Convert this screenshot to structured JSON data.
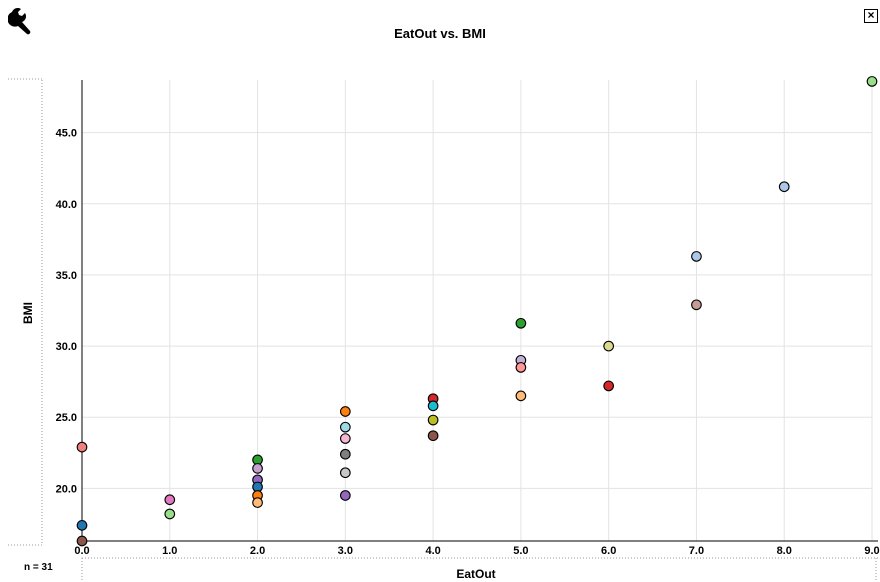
{
  "header": {
    "title": "EatOut vs. BMI",
    "close_label": "×",
    "count_label": "n = 31"
  },
  "icons": {
    "tools": "wrench-icon",
    "close": "close-icon"
  },
  "chart_data": {
    "type": "scatter",
    "title": "EatOut vs. BMI",
    "xlabel": "EatOut",
    "ylabel": "BMI",
    "xlim": [
      0,
      9
    ],
    "ylim": [
      16.3,
      48.7
    ],
    "xticks": [
      0,
      1,
      2,
      3,
      4,
      5,
      6,
      7,
      8,
      9
    ],
    "xtick_labels": [
      "0.0",
      "1.0",
      "2.0",
      "3.0",
      "4.0",
      "5.0",
      "6.0",
      "7.0",
      "8.0",
      "9.0"
    ],
    "yticks": [
      20,
      25,
      30,
      35,
      40,
      45
    ],
    "ytick_labels": [
      "20.0",
      "25.0",
      "30.0",
      "35.0",
      "40.0",
      "45.0"
    ],
    "grid": true,
    "legend": "none",
    "points": [
      {
        "x": 0,
        "y": 22.9,
        "color": "#f08080"
      },
      {
        "x": 0,
        "y": 17.4,
        "color": "#1f77b4"
      },
      {
        "x": 0,
        "y": 16.3,
        "color": "#8c564b"
      },
      {
        "x": 1,
        "y": 19.2,
        "color": "#e377c2"
      },
      {
        "x": 1,
        "y": 18.2,
        "color": "#98df8a"
      },
      {
        "x": 2,
        "y": 22.0,
        "color": "#2ca02c"
      },
      {
        "x": 2,
        "y": 21.4,
        "color": "#c5a0d0"
      },
      {
        "x": 2,
        "y": 20.6,
        "color": "#9467bd"
      },
      {
        "x": 2,
        "y": 20.1,
        "color": "#1f77b4"
      },
      {
        "x": 2,
        "y": 19.5,
        "color": "#ff7f0e"
      },
      {
        "x": 2,
        "y": 19.0,
        "color": "#ffbb78"
      },
      {
        "x": 3,
        "y": 25.4,
        "color": "#ff7f0e"
      },
      {
        "x": 3,
        "y": 24.3,
        "color": "#9edae5"
      },
      {
        "x": 3,
        "y": 23.5,
        "color": "#f7b6d2"
      },
      {
        "x": 3,
        "y": 22.4,
        "color": "#7f7f7f"
      },
      {
        "x": 3,
        "y": 21.1,
        "color": "#c7c7c7"
      },
      {
        "x": 3,
        "y": 19.5,
        "color": "#9467bd"
      },
      {
        "x": 4,
        "y": 26.3,
        "color": "#d62728"
      },
      {
        "x": 4,
        "y": 25.8,
        "color": "#17becf"
      },
      {
        "x": 4,
        "y": 24.8,
        "color": "#bcbd22"
      },
      {
        "x": 4,
        "y": 23.7,
        "color": "#8c564b"
      },
      {
        "x": 5,
        "y": 31.6,
        "color": "#2ca02c"
      },
      {
        "x": 5,
        "y": 29.0,
        "color": "#c5b0d5"
      },
      {
        "x": 5,
        "y": 28.5,
        "color": "#ff9896"
      },
      {
        "x": 5,
        "y": 26.5,
        "color": "#ffbb78"
      },
      {
        "x": 6,
        "y": 30.0,
        "color": "#dbdb8d"
      },
      {
        "x": 6,
        "y": 27.2,
        "color": "#d62728"
      },
      {
        "x": 7,
        "y": 36.3,
        "color": "#aec7e8"
      },
      {
        "x": 7,
        "y": 32.9,
        "color": "#c49c94"
      },
      {
        "x": 8,
        "y": 41.2,
        "color": "#aec7e8"
      },
      {
        "x": 9,
        "y": 48.6,
        "color": "#98df8a"
      }
    ]
  }
}
